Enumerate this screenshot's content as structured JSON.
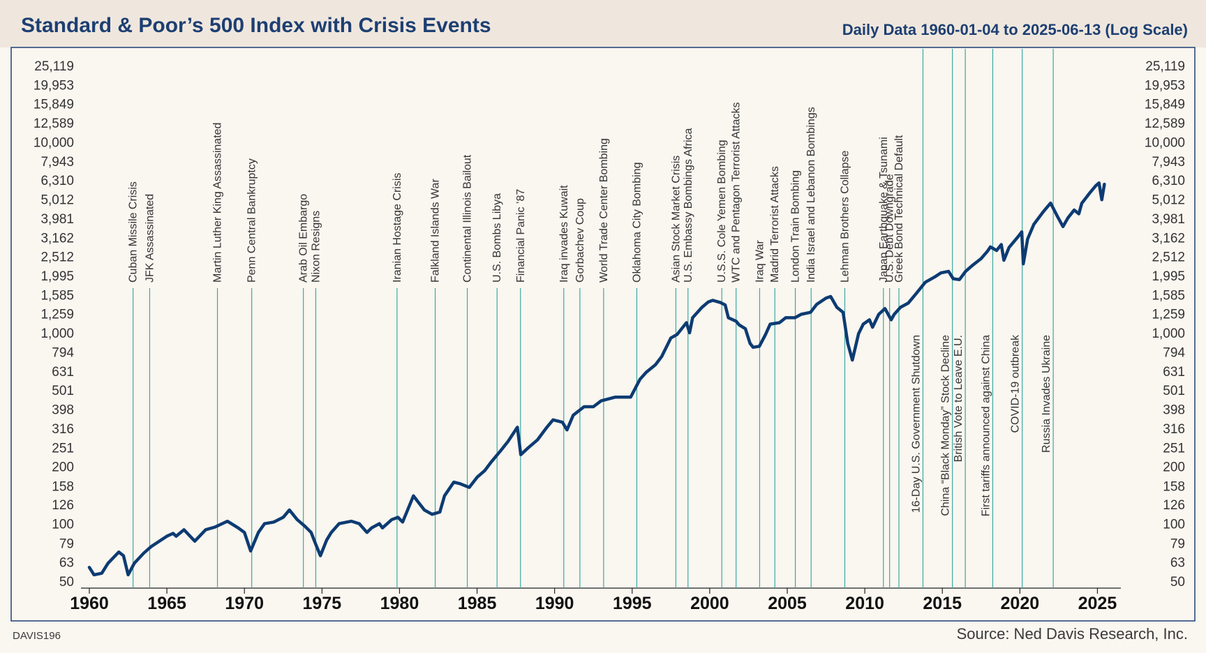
{
  "header": {
    "title": "Standard & Poor’s 500 Index with Crisis Events",
    "subtitle": "Daily Data 1960-01-04 to 2025-06-13 (Log Scale)"
  },
  "footer": {
    "code": "DAVIS196",
    "source": "Source: Ned Davis Research, Inc."
  },
  "colors": {
    "line": "#0d3b72",
    "event_line": "#3aa9a3",
    "header_bg": "#efe7de",
    "plot_bg": "#faf6f0",
    "title": "#1d3f72"
  },
  "chart_data": {
    "type": "line",
    "title": "Standard & Poor’s 500 Index with Crisis Events",
    "subtitle": "Daily Data 1960-01-04 to 2025-06-13 (Log Scale)",
    "y_scale": "log",
    "ylim": [
      50,
      25119
    ],
    "xlim": [
      1960,
      2025.7
    ],
    "x_ticks": [
      1960,
      1965,
      1970,
      1975,
      1980,
      1985,
      1990,
      1995,
      2000,
      2005,
      2010,
      2015,
      2020,
      2025
    ],
    "y_ticks": [
      "25,119",
      "19,953",
      "15,849",
      "12,589",
      "10,000",
      "7,943",
      "6,310",
      "5,012",
      "3,981",
      "3,162",
      "2,512",
      "1,995",
      "1,585",
      "1,259",
      "1,000",
      "794",
      "631",
      "501",
      "398",
      "316",
      "251",
      "200",
      "158",
      "126",
      "100",
      "79",
      "63",
      "50"
    ],
    "y_axis": "both sides",
    "grid": false,
    "legend": "none",
    "series": [
      {
        "x": [
          1960.0,
          1960.3,
          1960.8,
          1961.2,
          1961.9,
          1962.2,
          1962.5,
          1962.9,
          1963.5,
          1964.0,
          1965.0,
          1965.4,
          1965.6,
          1966.1,
          1966.8,
          1967.5,
          1968.1,
          1968.9,
          1969.6,
          1970.0,
          1970.4,
          1970.9,
          1971.3,
          1971.9,
          1972.5,
          1972.9,
          1973.4,
          1973.9,
          1974.3,
          1974.6,
          1974.9,
          1975.3,
          1975.6,
          1976.1,
          1976.9,
          1977.4,
          1977.9,
          1978.2,
          1978.7,
          1978.9,
          1979.5,
          1979.9,
          1980.2,
          1980.9,
          1981.2,
          1981.6,
          1982.1,
          1982.6,
          1982.9,
          1983.5,
          1983.9,
          1984.5,
          1985.0,
          1985.5,
          1985.9,
          1986.5,
          1987.0,
          1987.6,
          1987.82,
          1988.3,
          1988.9,
          1989.5,
          1989.9,
          1990.5,
          1990.8,
          1991.2,
          1991.9,
          1992.5,
          1993.0,
          1993.9,
          1994.5,
          1994.9,
          1995.5,
          1995.9,
          1996.5,
          1996.9,
          1997.5,
          1997.9,
          1998.5,
          1998.7,
          1998.9,
          1999.5,
          1999.9,
          2000.2,
          2000.7,
          2001.0,
          2001.2,
          2001.7,
          2001.9,
          2002.3,
          2002.6,
          2002.8,
          2003.2,
          2003.6,
          2003.9,
          2004.5,
          2004.9,
          2005.5,
          2005.9,
          2006.5,
          2006.9,
          2007.5,
          2007.8,
          2008.2,
          2008.6,
          2008.9,
          2009.2,
          2009.6,
          2009.9,
          2010.3,
          2010.5,
          2010.9,
          2011.3,
          2011.7,
          2011.9,
          2012.3,
          2012.8,
          2013.3,
          2013.9,
          2014.5,
          2014.9,
          2015.4,
          2015.7,
          2016.1,
          2016.5,
          2016.9,
          2017.5,
          2017.9,
          2018.1,
          2018.5,
          2018.8,
          2018.97,
          2019.3,
          2019.9,
          2020.12,
          2020.22,
          2020.5,
          2020.9,
          2021.5,
          2021.98,
          2022.4,
          2022.78,
          2023.1,
          2023.5,
          2023.8,
          2023.99,
          2024.5,
          2024.9,
          2025.1,
          2025.28,
          2025.45
        ],
        "values": [
          59,
          54,
          55,
          62,
          71,
          68,
          54,
          62,
          70,
          76,
          86,
          89,
          86,
          93,
          81,
          93,
          96,
          103,
          95,
          90,
          72,
          90,
          100,
          102,
          108,
          118,
          105,
          97,
          90,
          78,
          68,
          82,
          90,
          100,
          103,
          100,
          90,
          95,
          100,
          95,
          105,
          108,
          102,
          140,
          130,
          118,
          112,
          115,
          140,
          165,
          162,
          155,
          175,
          190,
          210,
          240,
          270,
          320,
          230,
          250,
          275,
          320,
          350,
          340,
          310,
          370,
          410,
          410,
          440,
          460,
          460,
          460,
          570,
          620,
          680,
          750,
          940,
          980,
          1130,
          1000,
          1200,
          1360,
          1450,
          1480,
          1440,
          1400,
          1200,
          1150,
          1100,
          1050,
          880,
          840,
          850,
          980,
          1110,
          1130,
          1200,
          1200,
          1250,
          1280,
          1410,
          1520,
          1550,
          1360,
          1280,
          880,
          720,
          990,
          1110,
          1170,
          1070,
          1250,
          1340,
          1170,
          1250,
          1360,
          1430,
          1600,
          1840,
          1960,
          2060,
          2100,
          1920,
          1900,
          2100,
          2240,
          2450,
          2670,
          2820,
          2700,
          2900,
          2400,
          2800,
          3200,
          3380,
          2300,
          3100,
          3700,
          4300,
          4780,
          4100,
          3600,
          4000,
          4400,
          4200,
          4770,
          5400,
          5900,
          6100,
          4980,
          6000
        ]
      }
    ],
    "events": [
      {
        "year": 1962.82,
        "label": "Cuban Missile Crisis"
      },
      {
        "year": 1963.89,
        "label": "JFK Assassinated"
      },
      {
        "year": 1968.26,
        "label": "Martin Luther King Assassinated"
      },
      {
        "year": 1970.47,
        "label": "Penn Central Bankruptcy"
      },
      {
        "year": 1973.8,
        "label": "Arab Oil Embargo"
      },
      {
        "year": 1974.6,
        "label": "Nixon Resigns"
      },
      {
        "year": 1979.84,
        "label": "Iranian Hostage Crisis"
      },
      {
        "year": 1982.3,
        "label": "Falkland Islands War"
      },
      {
        "year": 1984.37,
        "label": "Continental Illinois Bailout"
      },
      {
        "year": 1986.29,
        "label": "U.S. Bombs Libya"
      },
      {
        "year": 1987.8,
        "label": "Financial Panic ’87"
      },
      {
        "year": 1990.59,
        "label": "Iraq invades Kuwait"
      },
      {
        "year": 1991.63,
        "label": "Gorbachev Coup"
      },
      {
        "year": 1993.16,
        "label": "World Trade Center Bombing"
      },
      {
        "year": 1995.3,
        "label": "Oklahoma City Bombing"
      },
      {
        "year": 1997.82,
        "label": "Asian Stock Market Crisis"
      },
      {
        "year": 1998.6,
        "label": "U.S. Embassy Bombings Africa"
      },
      {
        "year": 2000.78,
        "label": "U.S.S. Cole Yemen Bombing"
      },
      {
        "year": 2001.7,
        "label": "WTC and Pentagon Terrorist Attacks"
      },
      {
        "year": 2003.22,
        "label": "Iraq War"
      },
      {
        "year": 2004.2,
        "label": "Madrid Terrorist Attacks"
      },
      {
        "year": 2005.52,
        "label": "London Train Bombing"
      },
      {
        "year": 2006.54,
        "label": "India Israel and Lebanon Bombings"
      },
      {
        "year": 2008.71,
        "label": "Lehman Brothers Collapse"
      },
      {
        "year": 2011.2,
        "label": "Japan Earthquake & Tsunami"
      },
      {
        "year": 2011.6,
        "label": "U.S. Debt Downgrade"
      },
      {
        "year": 2012.2,
        "label": "Greek Bond Technical Default"
      },
      {
        "year": 2013.75,
        "label": "16-Day U.S. Government Shutdown"
      },
      {
        "year": 2015.65,
        "label": "China “Black Monday” Stock Decline"
      },
      {
        "year": 2016.48,
        "label": "British Vote to Leave E.U."
      },
      {
        "year": 2018.25,
        "label": "First tariffs announced against China"
      },
      {
        "year": 2020.15,
        "label": "COVID-19 outbreak"
      },
      {
        "year": 2022.15,
        "label": "Russia Invades Ukraine"
      }
    ]
  }
}
